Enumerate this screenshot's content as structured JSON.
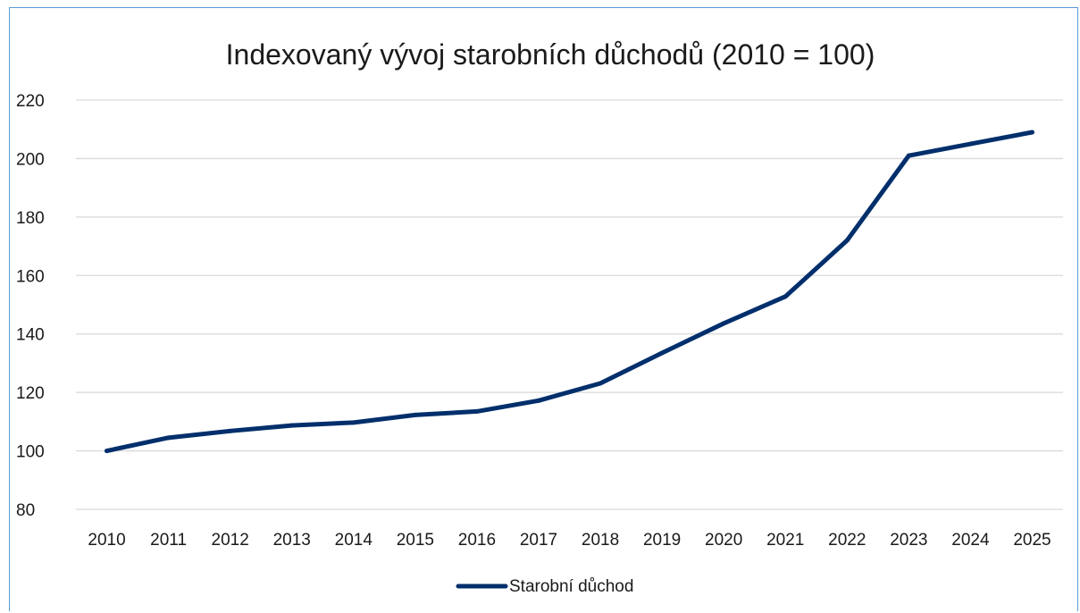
{
  "chart_data": {
    "type": "line",
    "title": "Indexovaný vývoj starobních důchodů (2010 = 100)",
    "xlabel": "",
    "ylabel": "",
    "categories": [
      "2010",
      "2011",
      "2012",
      "2013",
      "2014",
      "2015",
      "2016",
      "2017",
      "2018",
      "2019",
      "2020",
      "2021",
      "2022",
      "2023",
      "2024",
      "2025"
    ],
    "series": [
      {
        "name": "Starobní důchod",
        "values": [
          100,
          104.5,
          106.8,
          108.7,
          109.7,
          112.3,
          113.5,
          117.2,
          123.1,
          133.5,
          143.6,
          152.8,
          172,
          201,
          205,
          209
        ],
        "color": "#002f6c"
      }
    ],
    "ylim": [
      80,
      220
    ],
    "yticks": [
      80,
      100,
      120,
      140,
      160,
      180,
      200,
      220
    ],
    "grid": true,
    "legend_position": "bottom",
    "gridline_color": "#d9d9d9",
    "frame_color": "#5b9bd5"
  }
}
